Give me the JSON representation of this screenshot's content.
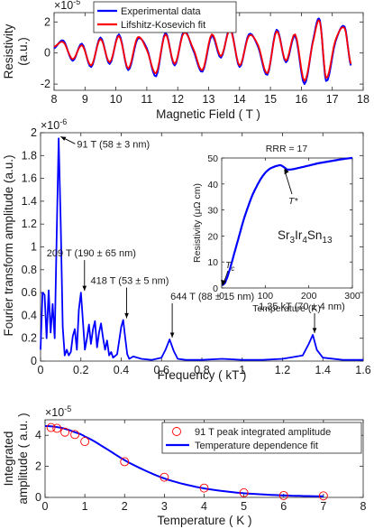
{
  "colors": {
    "blue": "#0000ff",
    "red": "#ff0000",
    "marker": "#ff0000",
    "axis": "#262626"
  },
  "chart_data": [
    {
      "type": "line",
      "xlabel": "Magnetic Field ( T )",
      "ylabel_line1": "Resistivity",
      "ylabel_line2": "(a.u.)",
      "exponent": "×10",
      "exponent_power": "-5",
      "xlim": [
        8,
        18
      ],
      "ylim": [
        -2.4,
        2.6
      ],
      "xticks": [
        "8",
        "9",
        "10",
        "11",
        "12",
        "13",
        "14",
        "15",
        "16",
        "17",
        "18"
      ],
      "yticks": [
        "-2",
        "0",
        "2"
      ],
      "legend_placement": "top-left",
      "series": [
        {
          "name": "Experimental data",
          "color": "#0000ff",
          "x": [
            8,
            8.3,
            8.6,
            8.9,
            9.2,
            9.5,
            9.8,
            10.1,
            10.4,
            10.7,
            11,
            11.3,
            11.6,
            11.9,
            12.2,
            12.5,
            12.8,
            13.1,
            13.4,
            13.7,
            14,
            14.3,
            14.6,
            14.9,
            15.2,
            15.5,
            15.8,
            16.1,
            16.4,
            16.6,
            16.8,
            17.1,
            17.4,
            17.6
          ],
          "y": [
            0.3,
            0.8,
            -0.5,
            0.6,
            -0.9,
            1.0,
            -0.7,
            1.2,
            -1.1,
            0.9,
            0.3,
            -1.5,
            1.3,
            -0.8,
            1.4,
            0.2,
            -1.2,
            1.1,
            -0.3,
            1.6,
            -0.9,
            1.2,
            0.4,
            -1.4,
            1.5,
            -0.6,
            1.1,
            -2.0,
            1.0,
            2.1,
            -1.8,
            0.7,
            1.7,
            -0.8
          ]
        },
        {
          "name": "Lifshitz-Kosevich fit",
          "color": "#ff0000",
          "x": [
            8,
            8.3,
            8.6,
            8.9,
            9.2,
            9.5,
            9.8,
            10.1,
            10.4,
            10.7,
            11,
            11.3,
            11.6,
            11.9,
            12.2,
            12.5,
            12.8,
            13.1,
            13.4,
            13.7,
            14,
            14.3,
            14.6,
            14.9,
            15.2,
            15.5,
            15.8,
            16.1,
            16.4,
            16.6,
            16.8,
            17.1,
            17.4,
            17.6
          ],
          "y": [
            0.4,
            0.7,
            -0.4,
            0.5,
            -0.8,
            0.9,
            -0.6,
            1.1,
            -1.0,
            1.0,
            0.2,
            -1.3,
            1.2,
            -0.7,
            1.3,
            0.3,
            -1.1,
            1.2,
            -0.2,
            1.5,
            -0.8,
            1.1,
            0.5,
            -1.3,
            1.4,
            -0.5,
            1.2,
            -1.8,
            0.9,
            2.0,
            -1.6,
            0.8,
            1.6,
            -0.7
          ]
        }
      ]
    },
    {
      "type": "line",
      "xlabel": "Frequency ( kT )",
      "ylabel": "Fourier transform amplitude (a.u.)",
      "exponent": "×10",
      "exponent_power": "-6",
      "xlim": [
        0,
        1.6
      ],
      "ylim": [
        0,
        2
      ],
      "xticks": [
        "0",
        "0.2",
        "0.4",
        "0.6",
        "0.8",
        "1",
        "1.2",
        "1.4",
        "1.6"
      ],
      "yticks": [
        "0",
        "0.2",
        "0.4",
        "0.6",
        "0.8",
        "1",
        "1.2",
        "1.4",
        "1.6",
        "1.8",
        "2"
      ],
      "series": [
        {
          "name": "",
          "color": "#0000ff",
          "x": [
            0,
            0.01,
            0.02,
            0.03,
            0.04,
            0.05,
            0.06,
            0.07,
            0.08,
            0.09,
            0.1,
            0.11,
            0.12,
            0.13,
            0.14,
            0.15,
            0.16,
            0.17,
            0.18,
            0.19,
            0.2,
            0.21,
            0.22,
            0.23,
            0.24,
            0.25,
            0.26,
            0.27,
            0.28,
            0.29,
            0.3,
            0.31,
            0.32,
            0.33,
            0.34,
            0.35,
            0.36,
            0.38,
            0.4,
            0.41,
            0.42,
            0.43,
            0.44,
            0.46,
            0.5,
            0.55,
            0.6,
            0.62,
            0.64,
            0.66,
            0.68,
            0.72,
            0.8,
            0.9,
            1.0,
            1.1,
            1.2,
            1.3,
            1.33,
            1.35,
            1.37,
            1.4,
            1.5,
            1.6
          ],
          "y": [
            0.1,
            0.6,
            0.58,
            0.2,
            0.62,
            0.25,
            0.5,
            0.2,
            1.1,
            1.95,
            1.2,
            0.3,
            0.05,
            0.1,
            0.05,
            0.08,
            0.22,
            0.28,
            0.1,
            0.45,
            0.6,
            0.35,
            0.1,
            0.2,
            0.32,
            0.15,
            0.28,
            0.35,
            0.12,
            0.25,
            0.33,
            0.2,
            0.1,
            0.18,
            0.05,
            0.08,
            0.03,
            0.06,
            0.3,
            0.36,
            0.2,
            0.06,
            0.02,
            0.04,
            0.02,
            0.01,
            0.03,
            0.1,
            0.19,
            0.09,
            0.02,
            0.01,
            0.01,
            0.02,
            0.01,
            0.01,
            0.02,
            0.05,
            0.15,
            0.23,
            0.1,
            0.03,
            0.01,
            0.01
          ]
        }
      ],
      "annotations": [
        {
          "text": "91 T (58 ± 3 nm)",
          "x": 0.091,
          "y": 1.95
        },
        {
          "text": "209 T (190 ± 65 nm)",
          "x": 0.209,
          "y": 0.6
        },
        {
          "text": "418 T (53 ± 5 nm)",
          "x": 0.418,
          "y": 0.36
        },
        {
          "text": "644 T (88 ± 15 nm)",
          "x": 0.644,
          "y": 0.19
        },
        {
          "text": "1.35 kT (70 ± 4 nm)",
          "x": 1.35,
          "y": 0.23
        }
      ]
    },
    {
      "type": "line",
      "title": "RRR = 17",
      "xlabel": "Temperature (K)",
      "ylabel": "Resistivity (μΩ cm)",
      "xlim": [
        0,
        300
      ],
      "ylim": [
        0,
        50
      ],
      "xticks": [
        "0",
        "100",
        "200",
        "300"
      ],
      "yticks": [
        "0",
        "10",
        "20",
        "30",
        "40",
        "50"
      ],
      "compound": "Sr3Ir4Sn13",
      "compound_parts": {
        "a": "Sr",
        "a_sub": "3",
        "b": "Ir",
        "b_sub": "4",
        "c": "Sn",
        "c_sub": "13"
      },
      "labels": {
        "tc": "T",
        "tc_sub": "c",
        "tstar": "T*"
      },
      "series": [
        {
          "name": "",
          "color": "#0000ff",
          "x": [
            0,
            5,
            10,
            20,
            30,
            40,
            50,
            60,
            70,
            80,
            90,
            100,
            110,
            120,
            130,
            135,
            140,
            145,
            150,
            160,
            180,
            200,
            220,
            250,
            280,
            300
          ],
          "y": [
            1.2,
            1.5,
            3,
            8,
            14,
            20,
            26,
            31,
            35.5,
            39,
            42,
            44.3,
            45.8,
            46.6,
            47.1,
            47.2,
            46.8,
            46.2,
            45.6,
            45.6,
            46.3,
            47.1,
            47.9,
            48.8,
            49.6,
            50
          ]
        }
      ]
    },
    {
      "type": "scatter",
      "xlabel": "Temperature ( K )",
      "ylabel_line1": "Integrated",
      "ylabel_line2": "amplitude ( a.u. )",
      "exponent": "×10",
      "exponent_power": "-5",
      "xlim": [
        0,
        8
      ],
      "ylim": [
        0,
        5
      ],
      "xticks": [
        "0",
        "1",
        "2",
        "3",
        "4",
        "5",
        "6",
        "7",
        "8"
      ],
      "yticks": [
        "0",
        "2",
        "4"
      ],
      "legend_placement": "top-right",
      "series": [
        {
          "name": "91 T peak integrated amplitude",
          "color": "#ff0000",
          "kind": "marker",
          "x": [
            0.15,
            0.3,
            0.5,
            0.75,
            1,
            2,
            3,
            4,
            5,
            6,
            7
          ],
          "y": [
            4.5,
            4.45,
            4.2,
            4.05,
            3.6,
            2.3,
            1.3,
            0.6,
            0.3,
            0.12,
            0.1
          ]
        },
        {
          "name": "Temperature dependence fit",
          "color": "#0000ff",
          "kind": "line",
          "x": [
            0,
            0.25,
            0.5,
            0.75,
            1,
            1.5,
            2,
            2.5,
            3,
            3.5,
            4,
            4.5,
            5,
            5.5,
            6,
            6.5,
            7
          ],
          "y": [
            4.6,
            4.55,
            4.42,
            4.2,
            3.92,
            3.2,
            2.4,
            1.75,
            1.22,
            0.85,
            0.58,
            0.4,
            0.27,
            0.19,
            0.13,
            0.09,
            0.07
          ]
        }
      ]
    }
  ]
}
